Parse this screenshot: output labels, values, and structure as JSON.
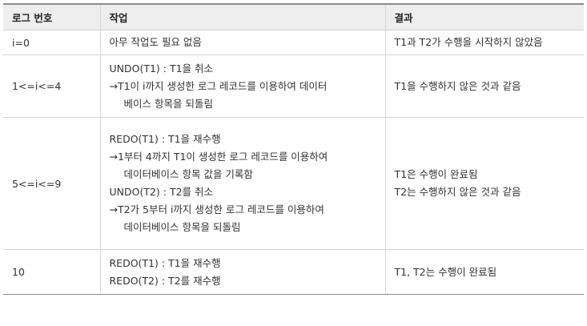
{
  "headers": [
    "로그 번호",
    "작업",
    "결과"
  ],
  "rows": [
    {
      "log": "i=0",
      "task": [
        "아무 작업도 필요 없음"
      ],
      "result": [
        "T1과 T2가 수행을 시작하지 않았음"
      ]
    },
    {
      "log": "1<=i<=4",
      "task": [
        "UNDO(T1) : T1을 취소",
        "→T1이 i까지 생성한 로그 레코드를 이용하여 데이터",
        "베이스 항목을 되돌림"
      ],
      "result": [
        "T1을 수행하지 않은 것과 같음"
      ]
    },
    {
      "log": "5<=i<=9",
      "task": [
        "REDO(T1) : T1을 재수행",
        "→1부터 4까지 T1이 생성한 로그 레코드를 이용하여",
        "데이터베이스 항목 값을 기록함",
        "UNDO(T2) : T2를 취소",
        "→T2가 5부터 i까지 생성한 로그 레코드를 이용하여",
        "데이터베이스 항목을 되돌림"
      ],
      "result": [
        "T1은 수행이 완료됨",
        "T2는 수행하지 않은 것과 같음"
      ]
    },
    {
      "log": "10",
      "task": [
        "REDO(T1) : T1을 재수행",
        "REDO(T2) : T2를 재수행"
      ],
      "result": [
        "T1, T2는 수행이 완료됨"
      ]
    }
  ]
}
